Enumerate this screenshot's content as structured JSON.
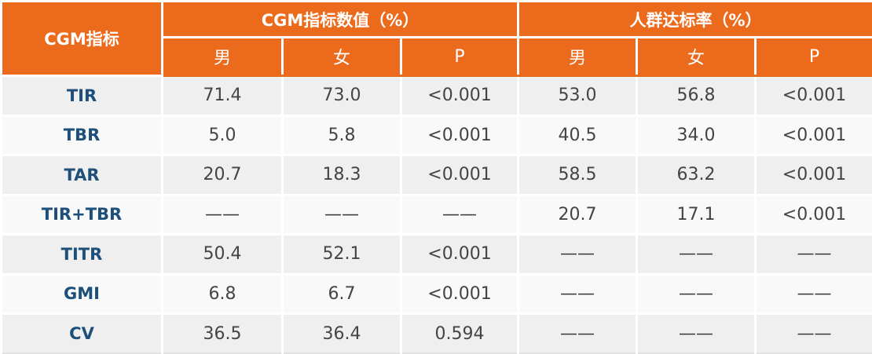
{
  "table": {
    "corner": "CGM指标",
    "groups": [
      "CGM指标数值（%）",
      "人群达标率（%）"
    ],
    "subheaders": [
      "男",
      "女",
      "P",
      "男",
      "女",
      "P"
    ],
    "rows": [
      [
        "TIR",
        "71.4",
        "73.0",
        "<0.001",
        "53.0",
        "56.8",
        "<0.001"
      ],
      [
        "TBR",
        "5.0",
        "5.8",
        "<0.001",
        "40.5",
        "34.0",
        "<0.001"
      ],
      [
        "TAR",
        "20.7",
        "18.3",
        "<0.001",
        "58.5",
        "63.2",
        "<0.001"
      ],
      [
        "TIR+TBR",
        "——",
        "——",
        "——",
        "20.7",
        "17.1",
        "<0.001"
      ],
      [
        "TITR",
        "50.4",
        "52.1",
        "<0.001",
        "——",
        "——",
        "——"
      ],
      [
        "GMI",
        "6.8",
        "6.7",
        "<0.001",
        "——",
        "——",
        "——"
      ],
      [
        "CV",
        "36.5",
        "36.4",
        "0.594",
        "——",
        "——",
        "——"
      ]
    ]
  }
}
